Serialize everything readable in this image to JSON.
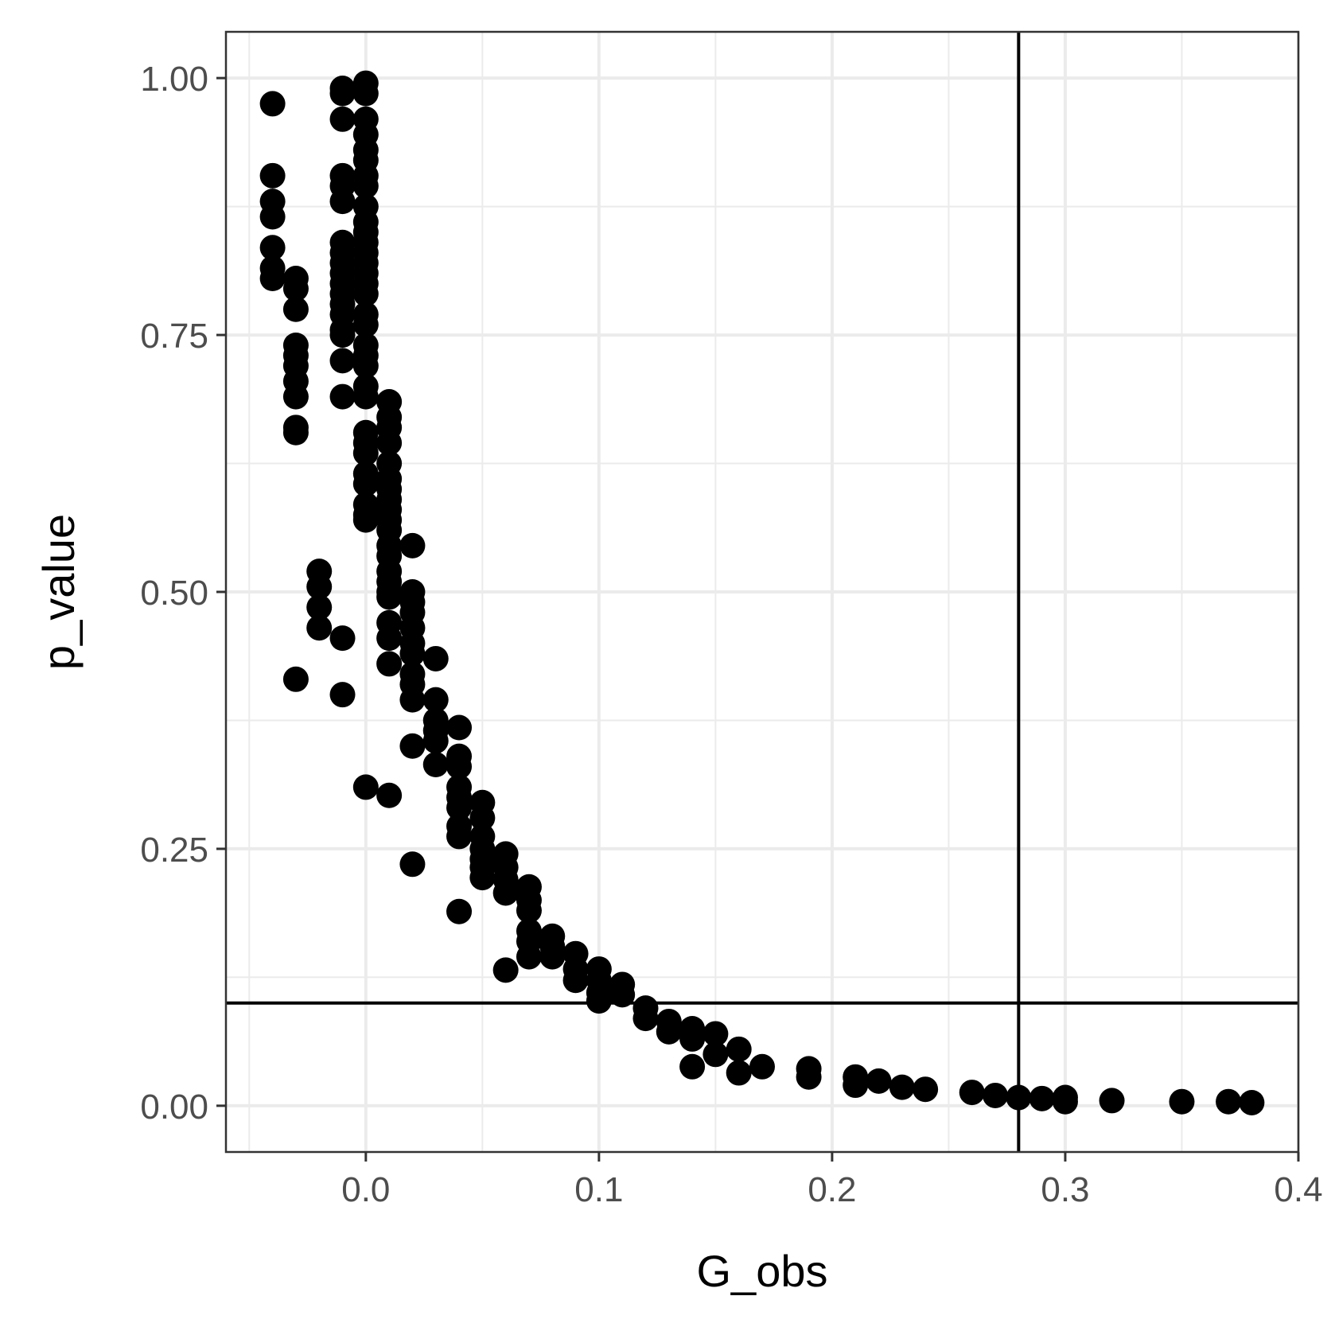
{
  "chart_data": {
    "type": "scatter",
    "xlabel": "G_obs",
    "ylabel": "p_value",
    "xlim": [
      -0.06,
      0.4
    ],
    "ylim": [
      -0.045,
      1.045
    ],
    "x_ticks": [
      0.0,
      0.1,
      0.2,
      0.3,
      0.4
    ],
    "x_tick_labels": [
      "0.0",
      "0.1",
      "0.2",
      "0.3",
      "0.4"
    ],
    "y_ticks": [
      0.0,
      0.25,
      0.5,
      0.75,
      1.0
    ],
    "y_tick_labels": [
      "0.00",
      "0.25",
      "0.50",
      "0.75",
      "1.00"
    ],
    "grid": true,
    "reference_lines": {
      "vertical_x": 0.28,
      "horizontal_y": 0.1
    },
    "colors": {
      "points": "#000000",
      "grid": "#ebebeb",
      "panel_border": "#333333",
      "lines": "#000000"
    },
    "points": [
      [
        -0.04,
        0.975
      ],
      [
        -0.04,
        0.905
      ],
      [
        -0.04,
        0.88
      ],
      [
        -0.04,
        0.865
      ],
      [
        -0.04,
        0.835
      ],
      [
        -0.04,
        0.815
      ],
      [
        -0.04,
        0.805
      ],
      [
        -0.03,
        0.805
      ],
      [
        -0.03,
        0.795
      ],
      [
        -0.03,
        0.775
      ],
      [
        -0.03,
        0.74
      ],
      [
        -0.03,
        0.73
      ],
      [
        -0.03,
        0.72
      ],
      [
        -0.03,
        0.705
      ],
      [
        -0.03,
        0.69
      ],
      [
        -0.03,
        0.66
      ],
      [
        -0.03,
        0.655
      ],
      [
        -0.03,
        0.415
      ],
      [
        -0.02,
        0.52
      ],
      [
        -0.02,
        0.505
      ],
      [
        -0.02,
        0.485
      ],
      [
        -0.02,
        0.465
      ],
      [
        -0.01,
        0.99
      ],
      [
        -0.01,
        0.985
      ],
      [
        -0.01,
        0.96
      ],
      [
        -0.01,
        0.905
      ],
      [
        -0.01,
        0.895
      ],
      [
        -0.01,
        0.88
      ],
      [
        -0.01,
        0.84
      ],
      [
        -0.01,
        0.83
      ],
      [
        -0.01,
        0.82
      ],
      [
        -0.01,
        0.81
      ],
      [
        -0.01,
        0.8
      ],
      [
        -0.01,
        0.79
      ],
      [
        -0.01,
        0.78
      ],
      [
        -0.01,
        0.77
      ],
      [
        -0.01,
        0.755
      ],
      [
        -0.01,
        0.75
      ],
      [
        -0.01,
        0.725
      ],
      [
        -0.01,
        0.69
      ],
      [
        -0.01,
        0.455
      ],
      [
        -0.01,
        0.4
      ],
      [
        0.0,
        0.995
      ],
      [
        0.0,
        0.985
      ],
      [
        0.0,
        0.96
      ],
      [
        0.0,
        0.945
      ],
      [
        0.0,
        0.93
      ],
      [
        0.0,
        0.92
      ],
      [
        0.0,
        0.905
      ],
      [
        0.0,
        0.895
      ],
      [
        0.0,
        0.875
      ],
      [
        0.0,
        0.86
      ],
      [
        0.0,
        0.85
      ],
      [
        0.0,
        0.84
      ],
      [
        0.0,
        0.83
      ],
      [
        0.0,
        0.82
      ],
      [
        0.0,
        0.81
      ],
      [
        0.0,
        0.8
      ],
      [
        0.0,
        0.79
      ],
      [
        0.0,
        0.77
      ],
      [
        0.0,
        0.76
      ],
      [
        0.0,
        0.74
      ],
      [
        0.0,
        0.73
      ],
      [
        0.0,
        0.72
      ],
      [
        0.0,
        0.7
      ],
      [
        0.0,
        0.69
      ],
      [
        0.0,
        0.655
      ],
      [
        0.0,
        0.645
      ],
      [
        0.0,
        0.635
      ],
      [
        0.0,
        0.615
      ],
      [
        0.0,
        0.605
      ],
      [
        0.0,
        0.585
      ],
      [
        0.0,
        0.575
      ],
      [
        0.0,
        0.57
      ],
      [
        0.0,
        0.31
      ],
      [
        0.01,
        0.685
      ],
      [
        0.01,
        0.67
      ],
      [
        0.01,
        0.66
      ],
      [
        0.01,
        0.645
      ],
      [
        0.01,
        0.625
      ],
      [
        0.01,
        0.61
      ],
      [
        0.01,
        0.6
      ],
      [
        0.01,
        0.59
      ],
      [
        0.01,
        0.58
      ],
      [
        0.01,
        0.57
      ],
      [
        0.01,
        0.56
      ],
      [
        0.01,
        0.545
      ],
      [
        0.01,
        0.535
      ],
      [
        0.01,
        0.52
      ],
      [
        0.01,
        0.51
      ],
      [
        0.01,
        0.5
      ],
      [
        0.01,
        0.495
      ],
      [
        0.01,
        0.47
      ],
      [
        0.01,
        0.455
      ],
      [
        0.01,
        0.43
      ],
      [
        0.01,
        0.302
      ],
      [
        0.02,
        0.545
      ],
      [
        0.02,
        0.5
      ],
      [
        0.02,
        0.49
      ],
      [
        0.02,
        0.48
      ],
      [
        0.02,
        0.465
      ],
      [
        0.02,
        0.45
      ],
      [
        0.02,
        0.44
      ],
      [
        0.02,
        0.42
      ],
      [
        0.02,
        0.41
      ],
      [
        0.02,
        0.395
      ],
      [
        0.02,
        0.35
      ],
      [
        0.02,
        0.235
      ],
      [
        0.03,
        0.435
      ],
      [
        0.03,
        0.395
      ],
      [
        0.03,
        0.375
      ],
      [
        0.03,
        0.365
      ],
      [
        0.03,
        0.355
      ],
      [
        0.03,
        0.332
      ],
      [
        0.04,
        0.368
      ],
      [
        0.04,
        0.34
      ],
      [
        0.04,
        0.33
      ],
      [
        0.04,
        0.31
      ],
      [
        0.04,
        0.3
      ],
      [
        0.04,
        0.29
      ],
      [
        0.04,
        0.272
      ],
      [
        0.04,
        0.262
      ],
      [
        0.04,
        0.189
      ],
      [
        0.05,
        0.295
      ],
      [
        0.05,
        0.28
      ],
      [
        0.05,
        0.262
      ],
      [
        0.05,
        0.25
      ],
      [
        0.05,
        0.24
      ],
      [
        0.05,
        0.232
      ],
      [
        0.05,
        0.222
      ],
      [
        0.06,
        0.245
      ],
      [
        0.06,
        0.232
      ],
      [
        0.06,
        0.22
      ],
      [
        0.06,
        0.207
      ],
      [
        0.06,
        0.132
      ],
      [
        0.07,
        0.213
      ],
      [
        0.07,
        0.2
      ],
      [
        0.07,
        0.19
      ],
      [
        0.07,
        0.17
      ],
      [
        0.07,
        0.16
      ],
      [
        0.07,
        0.145
      ],
      [
        0.08,
        0.165
      ],
      [
        0.08,
        0.155
      ],
      [
        0.08,
        0.145
      ],
      [
        0.09,
        0.148
      ],
      [
        0.09,
        0.133
      ],
      [
        0.09,
        0.122
      ],
      [
        0.1,
        0.133
      ],
      [
        0.1,
        0.122
      ],
      [
        0.1,
        0.11
      ],
      [
        0.1,
        0.102
      ],
      [
        0.11,
        0.118
      ],
      [
        0.11,
        0.108
      ],
      [
        0.12,
        0.095
      ],
      [
        0.12,
        0.085
      ],
      [
        0.13,
        0.082
      ],
      [
        0.13,
        0.072
      ],
      [
        0.14,
        0.075
      ],
      [
        0.14,
        0.065
      ],
      [
        0.14,
        0.038
      ],
      [
        0.15,
        0.07
      ],
      [
        0.15,
        0.05
      ],
      [
        0.16,
        0.055
      ],
      [
        0.16,
        0.032
      ],
      [
        0.17,
        0.038
      ],
      [
        0.19,
        0.036
      ],
      [
        0.19,
        0.028
      ],
      [
        0.21,
        0.028
      ],
      [
        0.21,
        0.02
      ],
      [
        0.22,
        0.024
      ],
      [
        0.23,
        0.018
      ],
      [
        0.24,
        0.016
      ],
      [
        0.26,
        0.013
      ],
      [
        0.27,
        0.01
      ],
      [
        0.28,
        0.008
      ],
      [
        0.29,
        0.007
      ],
      [
        0.3,
        0.008
      ],
      [
        0.3,
        0.004
      ],
      [
        0.32,
        0.005
      ],
      [
        0.35,
        0.004
      ],
      [
        0.37,
        0.004
      ],
      [
        0.38,
        0.003
      ]
    ]
  }
}
